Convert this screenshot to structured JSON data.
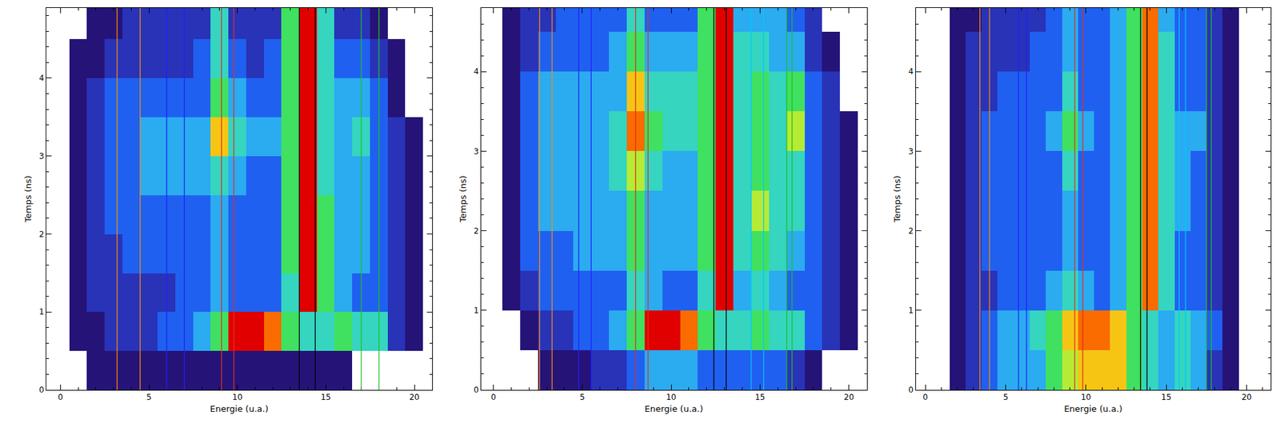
{
  "chart_data": [
    {
      "type": "heatmap",
      "x_label": "Energie (u.a.)",
      "y_label": "Temps (ns)",
      "xlim": [
        -0.8,
        21
      ],
      "ylim": [
        0,
        4.9
      ],
      "xticks": [
        0,
        5,
        10,
        15,
        20
      ],
      "yticks": [
        0,
        1,
        2,
        3,
        4
      ],
      "zlim": [
        0,
        10
      ],
      "x": [
        0,
        1,
        2,
        3,
        4,
        5,
        6,
        7,
        8,
        9,
        10,
        11,
        12,
        13,
        14,
        15,
        16,
        17,
        18,
        19,
        20
      ],
      "y": [
        0.25,
        0.75,
        1.25,
        1.75,
        2.25,
        2.75,
        3.25,
        3.75,
        4.25,
        4.75
      ],
      "z": [
        [
          null,
          null,
          1,
          1,
          1,
          1,
          1,
          1,
          1,
          1,
          1,
          1,
          1,
          1,
          1,
          1,
          1,
          null,
          null,
          null,
          null
        ],
        [
          null,
          1,
          1,
          2,
          2,
          2,
          3,
          3,
          4,
          6,
          10,
          10,
          9,
          6,
          5,
          5,
          6,
          5,
          5,
          2,
          1
        ],
        [
          null,
          1,
          2,
          2,
          2,
          2,
          2,
          3,
          3,
          4,
          3,
          3,
          3,
          5,
          10,
          6,
          4,
          3,
          3,
          2,
          1
        ],
        [
          null,
          1,
          2,
          2,
          3,
          3,
          3,
          3,
          3,
          4,
          3,
          3,
          3,
          6,
          10,
          6,
          4,
          4,
          3,
          2,
          1
        ],
        [
          null,
          1,
          2,
          3,
          3,
          3,
          3,
          3,
          3,
          4,
          3,
          3,
          3,
          6,
          10,
          6,
          4,
          4,
          3,
          2,
          1
        ],
        [
          null,
          1,
          2,
          3,
          3,
          4,
          4,
          4,
          4,
          5,
          4,
          3,
          3,
          6,
          10,
          5,
          4,
          4,
          3,
          2,
          1
        ],
        [
          null,
          1,
          2,
          3,
          3,
          4,
          4,
          4,
          4,
          8,
          5,
          4,
          4,
          6,
          10,
          5,
          4,
          5,
          3,
          2,
          1
        ],
        [
          null,
          1,
          2,
          3,
          3,
          3,
          3,
          3,
          3,
          6,
          4,
          3,
          3,
          6,
          10,
          5,
          4,
          4,
          3,
          1,
          null
        ],
        [
          null,
          1,
          1,
          2,
          2,
          2,
          2,
          2,
          3,
          5,
          3,
          2,
          3,
          6,
          10,
          5,
          3,
          3,
          2,
          1,
          null
        ],
        [
          null,
          null,
          1,
          1,
          2,
          2,
          2,
          2,
          2,
          5,
          2,
          2,
          2,
          6,
          10,
          5,
          2,
          2,
          1,
          null,
          null
        ]
      ],
      "lines": [
        {
          "x": 3.2,
          "color": "#ff8c00"
        },
        {
          "x": 4.5,
          "color": "#ff8c00"
        },
        {
          "x": 6.0,
          "color": "#2020ff"
        },
        {
          "x": 7.0,
          "color": "#2020ff"
        },
        {
          "x": 9.1,
          "color": "#e03020"
        },
        {
          "x": 9.8,
          "color": "#e03020"
        },
        {
          "x": 13.5,
          "color": "#000000"
        },
        {
          "x": 14.4,
          "color": "#000000"
        },
        {
          "x": 17.0,
          "color": "#20c020"
        },
        {
          "x": 18.0,
          "color": "#20c020"
        }
      ]
    },
    {
      "type": "heatmap",
      "x_label": "Energie (u.a.)",
      "y_label": "Temps (ns)",
      "xlim": [
        -0.7,
        21
      ],
      "ylim": [
        0,
        4.8
      ],
      "xticks": [
        0,
        5,
        10,
        15,
        20
      ],
      "yticks": [
        0,
        1,
        2,
        3,
        4
      ],
      "zlim": [
        0,
        10
      ],
      "x": [
        0,
        1,
        2,
        3,
        4,
        5,
        6,
        7,
        8,
        9,
        10,
        11,
        12,
        13,
        14,
        15,
        16,
        17,
        18,
        19,
        20
      ],
      "y": [
        0.25,
        0.75,
        1.25,
        1.75,
        2.25,
        2.75,
        3.25,
        3.75,
        4.25,
        4.75
      ],
      "z": [
        [
          null,
          null,
          null,
          1,
          1,
          1,
          2,
          2,
          3,
          4,
          4,
          4,
          3,
          3,
          3,
          3,
          3,
          2,
          1,
          null,
          null
        ],
        [
          null,
          null,
          1,
          2,
          2,
          3,
          3,
          4,
          6,
          10,
          10,
          9,
          6,
          5,
          5,
          6,
          5,
          5,
          3,
          2,
          1
        ],
        [
          null,
          1,
          2,
          3,
          3,
          3,
          3,
          3,
          5,
          4,
          3,
          3,
          5,
          10,
          4,
          5,
          4,
          3,
          3,
          2,
          1
        ],
        [
          null,
          1,
          3,
          3,
          3,
          4,
          4,
          4,
          6,
          4,
          4,
          4,
          6,
          10,
          5,
          6,
          5,
          4,
          3,
          2,
          1
        ],
        [
          null,
          1,
          3,
          4,
          4,
          4,
          4,
          4,
          6,
          4,
          4,
          4,
          6,
          10,
          5,
          7,
          5,
          5,
          3,
          2,
          1
        ],
        [
          null,
          1,
          3,
          4,
          4,
          4,
          4,
          5,
          7,
          5,
          4,
          4,
          6,
          10,
          5,
          6,
          5,
          5,
          3,
          2,
          1
        ],
        [
          null,
          1,
          3,
          4,
          4,
          4,
          4,
          5,
          9,
          6,
          5,
          5,
          6,
          10,
          5,
          6,
          5,
          7,
          3,
          2,
          1
        ],
        [
          null,
          1,
          3,
          4,
          4,
          4,
          4,
          4,
          8,
          5,
          5,
          5,
          6,
          10,
          5,
          6,
          5,
          6,
          3,
          2,
          null
        ],
        [
          null,
          1,
          2,
          3,
          3,
          3,
          3,
          4,
          6,
          4,
          4,
          4,
          6,
          10,
          5,
          5,
          4,
          4,
          2,
          1,
          null
        ],
        [
          null,
          1,
          2,
          2,
          3,
          3,
          3,
          3,
          5,
          3,
          3,
          3,
          6,
          10,
          4,
          4,
          4,
          3,
          2,
          null,
          null
        ]
      ],
      "lines": [
        {
          "x": 2.6,
          "color": "#ff8c00"
        },
        {
          "x": 3.3,
          "color": "#ff8c00"
        },
        {
          "x": 4.8,
          "color": "#2020ff"
        },
        {
          "x": 5.5,
          "color": "#2020ff"
        },
        {
          "x": 8.0,
          "color": "#e03020"
        },
        {
          "x": 8.7,
          "color": "#e03020"
        },
        {
          "x": 12.4,
          "color": "#000000"
        },
        {
          "x": 13.1,
          "color": "#000000"
        },
        {
          "x": 14.5,
          "color": "#00c8ff"
        },
        {
          "x": 15.2,
          "color": "#00c8ff"
        },
        {
          "x": 16.5,
          "color": "#20c020"
        },
        {
          "x": 16.8,
          "color": "#20c020"
        }
      ]
    },
    {
      "type": "heatmap",
      "x_label": "Energie (u.a.)",
      "y_label": "Temps (ns)",
      "xlim": [
        -0.6,
        21.5
      ],
      "ylim": [
        0,
        4.8
      ],
      "xticks": [
        0,
        5,
        10,
        15,
        20
      ],
      "yticks": [
        0,
        1,
        2,
        3,
        4
      ],
      "zlim": [
        0,
        10
      ],
      "x": [
        0,
        1,
        2,
        3,
        4,
        5,
        6,
        7,
        8,
        9,
        10,
        11,
        12,
        13,
        14,
        15,
        16,
        17,
        18,
        19,
        20
      ],
      "y": [
        0.25,
        0.75,
        1.25,
        1.75,
        2.25,
        2.75,
        3.25,
        3.75,
        4.25,
        4.75
      ],
      "z": [
        [
          null,
          null,
          1,
          2,
          3,
          4,
          4,
          4,
          6,
          7,
          8,
          8,
          8,
          6,
          5,
          4,
          5,
          4,
          2,
          1,
          null
        ],
        [
          null,
          null,
          1,
          2,
          3,
          4,
          4,
          5,
          6,
          8,
          9,
          9,
          8,
          6,
          5,
          4,
          5,
          4,
          3,
          1,
          null
        ],
        [
          null,
          null,
          1,
          2,
          2,
          3,
          3,
          3,
          4,
          5,
          4,
          3,
          4,
          6,
          9,
          5,
          3,
          3,
          2,
          1,
          null
        ],
        [
          null,
          null,
          1,
          2,
          3,
          3,
          3,
          3,
          3,
          4,
          3,
          3,
          4,
          6,
          9,
          5,
          3,
          3,
          2,
          1,
          null
        ],
        [
          null,
          null,
          1,
          2,
          3,
          3,
          3,
          3,
          3,
          4,
          3,
          3,
          4,
          6,
          9,
          5,
          4,
          3,
          2,
          1,
          null
        ],
        [
          null,
          null,
          1,
          2,
          3,
          3,
          3,
          3,
          3,
          5,
          3,
          3,
          4,
          6,
          9,
          5,
          4,
          3,
          2,
          1,
          null
        ],
        [
          null,
          null,
          1,
          2,
          3,
          3,
          3,
          3,
          4,
          6,
          4,
          3,
          4,
          6,
          9,
          5,
          4,
          4,
          2,
          1,
          null
        ],
        [
          null,
          null,
          1,
          2,
          2,
          3,
          3,
          3,
          3,
          5,
          3,
          3,
          4,
          6,
          9,
          5,
          3,
          3,
          2,
          1,
          null
        ],
        [
          null,
          null,
          1,
          2,
          2,
          2,
          2,
          3,
          3,
          4,
          3,
          3,
          4,
          6,
          9,
          5,
          3,
          3,
          2,
          1,
          null
        ],
        [
          null,
          null,
          1,
          1,
          2,
          2,
          2,
          2,
          3,
          4,
          3,
          3,
          4,
          6,
          9,
          4,
          3,
          3,
          2,
          1,
          null
        ]
      ],
      "lines": [
        {
          "x": 3.4,
          "color": "#ff8c00"
        },
        {
          "x": 4.0,
          "color": "#ff8c00"
        },
        {
          "x": 5.8,
          "color": "#2020ff"
        },
        {
          "x": 6.3,
          "color": "#2020ff"
        },
        {
          "x": 9.3,
          "color": "#e03020"
        },
        {
          "x": 9.8,
          "color": "#e03020"
        },
        {
          "x": 13.4,
          "color": "#000000"
        },
        {
          "x": 13.8,
          "color": "#000000"
        },
        {
          "x": 15.8,
          "color": "#00c8ff"
        },
        {
          "x": 16.2,
          "color": "#00c8ff"
        },
        {
          "x": 17.5,
          "color": "#20c020"
        },
        {
          "x": 17.8,
          "color": "#20c020"
        }
      ]
    }
  ]
}
